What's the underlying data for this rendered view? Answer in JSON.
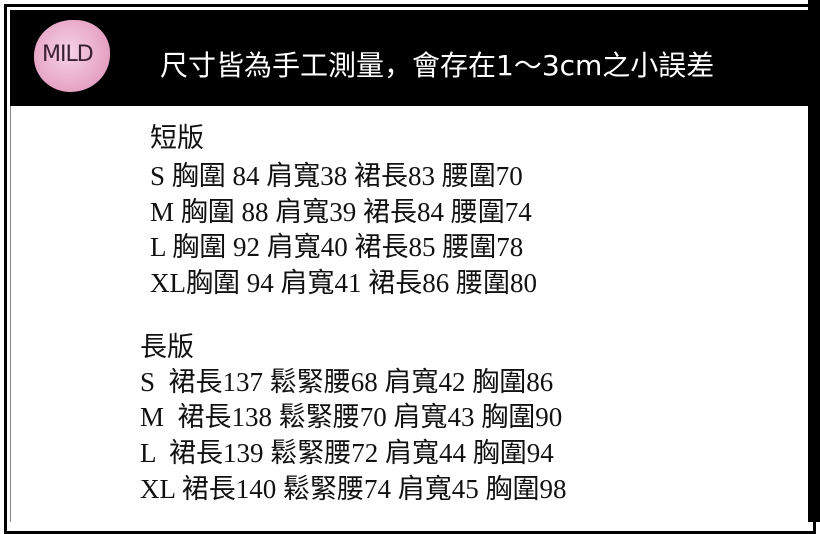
{
  "logo": {
    "text": "MILD",
    "color": "#e8a8c8"
  },
  "header": {
    "title": "尺寸皆為手工測量，會存在1～3cm之小誤差"
  },
  "short": {
    "title": "短版",
    "rows": [
      "S 胸圍 84 肩寬38 裙長83 腰圍70",
      "M 胸圍 88 肩寬39 裙長84 腰圍74",
      "L 胸圍 92 肩寬40 裙長85 腰圍78",
      "XL胸圍 94 肩寬41 裙長86 腰圍80"
    ]
  },
  "long": {
    "title": "長版",
    "rows": [
      "S  裙長137 鬆緊腰68 肩寬42 胸圍86",
      "M  裙長138 鬆緊腰70 肩寬43 胸圍90",
      "L  裙長139 鬆緊腰72 肩寬44 胸圍94",
      "XL 裙長140 鬆緊腰74 肩寬45 胸圍98"
    ]
  }
}
